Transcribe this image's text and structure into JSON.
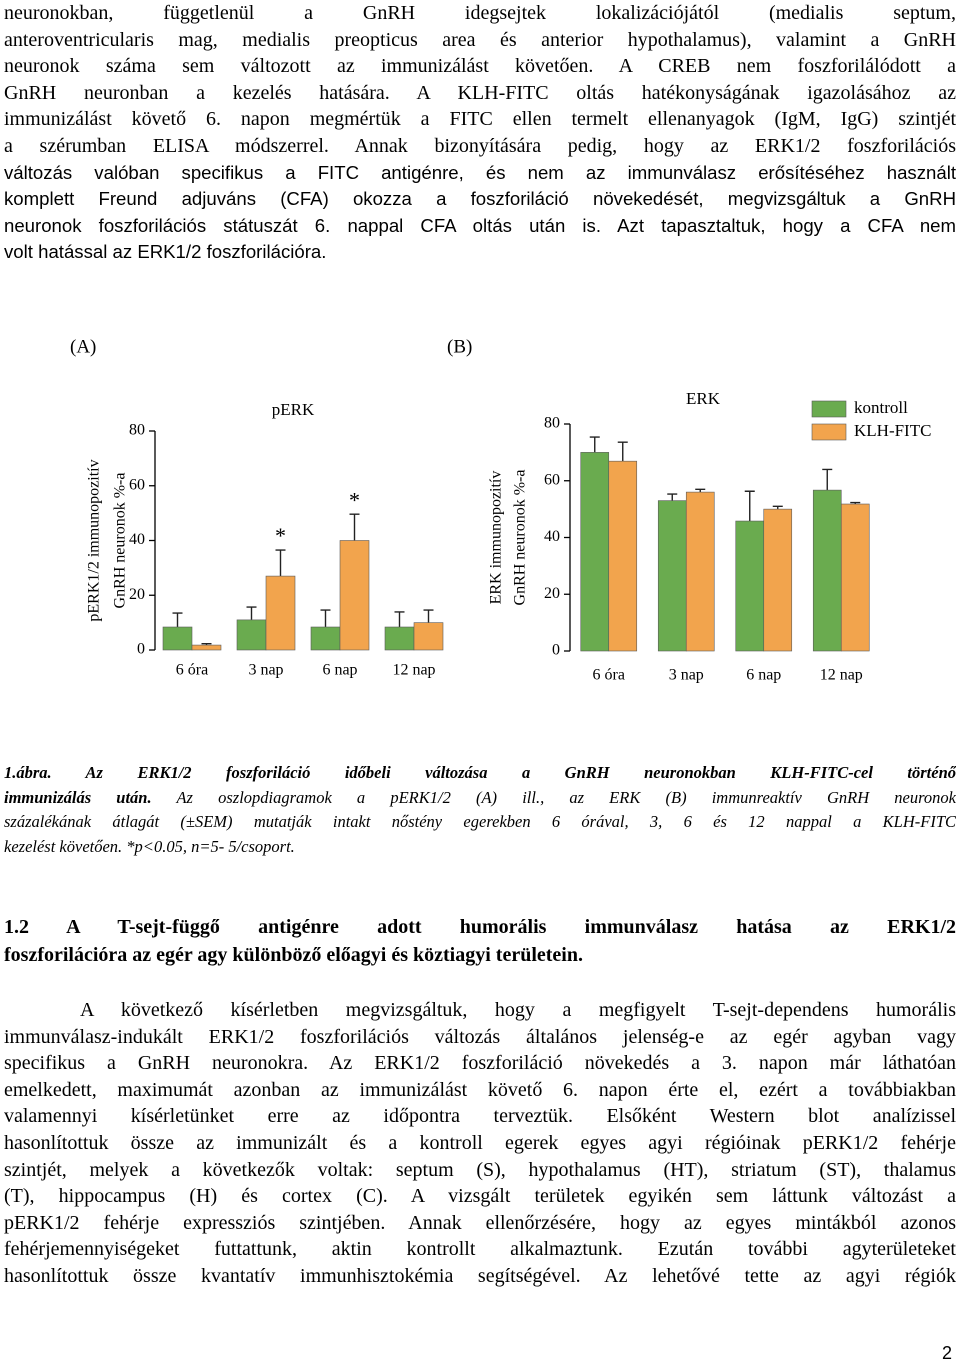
{
  "paragraph_1": {
    "lines": [
      "neuronokban, függetlenül a GnRH idegsejtek lokalizációjától (medialis septum,",
      "anteroventricularis mag, medialis preopticus area és anterior hypothalamus), valamint a GnRH",
      "neuronok száma sem változott az immunizálást követően. A CREB nem foszforilálódott a",
      "GnRH neuronban a kezelés hatására. A KLH-FITC oltás hatékonyságának igazolásához az",
      "immunizálást követő 6. napon megmértük a FITC ellen termelt ellenanyagok (IgM, IgG) szintjét",
      "a szérumban ELISA módszerrel. Annak bizonyítására pedig, hogy az ERK1/2 foszforilációs",
      "változás valóban specifikus a FITC antigénre, és nem az immunválasz erősítéséhez használt",
      "komplett Freund adjuváns (CFA) okozza a foszforiláció növekedését, megvizsgáltuk a GnRH",
      "neuronok foszforilációs státuszát 6. nappal CFA oltás után is. Azt tapasztaltuk, hogy a CFA nem",
      "volt hatással az ERK1/2 foszforilációra."
    ]
  },
  "chart_data": [
    {
      "type": "bar",
      "label": "(A)",
      "title": "pERK",
      "y_label": [
        "pERK1/2 immunopozitív",
        "GnRH neuronok %-a"
      ],
      "categories": [
        "6 óra",
        "3 nap",
        "6 nap",
        "12 nap"
      ],
      "series": [
        {
          "color": "#6aab4f",
          "values": [
            8.4,
            11,
            8.4,
            8.4
          ],
          "errors": [
            5.1,
            4.7,
            6.2,
            5.5
          ]
        },
        {
          "color": "#f2a44d",
          "values": [
            1.8,
            27,
            40,
            10
          ],
          "errors": [
            0.5,
            9.5,
            9.6,
            4.6
          ]
        }
      ],
      "annotations": [
        {
          "text": "*",
          "x": "3 nap"
        },
        {
          "text": "*",
          "x": "6 nap"
        }
      ],
      "ylim": [
        0,
        80
      ],
      "yticks": [
        0,
        20,
        40,
        60,
        80
      ]
    },
    {
      "type": "bar",
      "label": "(B)",
      "title": "ERK",
      "y_label": [
        "ERK immunopozitív",
        "GnRH neuronok %-a"
      ],
      "categories": [
        "6 óra",
        "3 nap",
        "6 nap",
        "12 nap"
      ],
      "series": [
        {
          "name": "kontroll",
          "color": "#6aab4f",
          "values": [
            70,
            53,
            45.8,
            56.7
          ],
          "errors": [
            5.4,
            2.3,
            10.5,
            7.3
          ]
        },
        {
          "name": "KLH-FITC",
          "color": "#f2a44d",
          "values": [
            66.9,
            56,
            50,
            51.8
          ],
          "errors": [
            6.7,
            1,
            1,
            0.5
          ]
        }
      ],
      "ylim": [
        0,
        80
      ],
      "yticks": [
        0,
        20,
        40,
        60,
        80
      ],
      "legend": "top-right"
    }
  ],
  "caption": {
    "title_lines": [
      "1.ábra. Az ERK1/2 foszforiláció időbeli változása a GnRH neuronokban KLH-FITC-cel történő",
      "immunizálás után."
    ],
    "body_lines": [
      "Az oszlopdiagramok a pERK1/2 (A) ill., az ERK (B) immunreaktív GnRH neuronok",
      "százalékának átlagát (±SEM) mutatják intakt nőstény egerekben 6 órával, 3, 6 és 12 nappal a KLH-FITC",
      "kezelést követően. *p<0.05, n=5- 5/csoport."
    ]
  },
  "heading": {
    "lines": [
      "1.2 A T-sejt-függő antigénre adott humorális immunválasz hatása az ERK1/2",
      "foszforilációra az egér agy különböző előagyi és köztiagyi területein."
    ]
  },
  "paragraph_2": {
    "lines": [
      "A következő kísérletben megvizsgáltuk, hogy a megfigyelt T-sejt-dependens humorális",
      "immunválasz-indukált ERK1/2 foszforilációs változás általános jelenség-e az egér agyban vagy",
      "specifikus a GnRH neuronokra. Az ERK1/2 foszforiláció növekedés a 3. napon már láthatóan",
      "emelkedett, maximumát azonban az immunizálást követő 6. napon érte el, ezért a továbbiakban",
      "valamennyi kísérletünket erre az időpontra terveztük. Elsőként Western blot analízissel",
      "hasonlítottuk össze az immunizált és a kontroll egerek egyes agyi régióinak pERK1/2 fehérje",
      "szintjét, melyek a következők voltak: septum (S), hypothalamus (HT), striatum (ST), thalamus",
      "(T), hippocampus (H) és cortex (C). A vizsgált területek egyikén sem láttunk változást a",
      "pERK1/2 fehérje expressziós szintjében. Annak ellenőrzésére, hogy az egyes mintákból azonos",
      "fehérjemennyiségeket futtattunk, aktin kontrollt alkalmaztunk. Ezután további agyterületeket",
      "hasonlítottuk össze kvantatív immunhisztokémia segítségével. Az lehetővé tette az agyi régiók"
    ]
  },
  "page_number": "2"
}
